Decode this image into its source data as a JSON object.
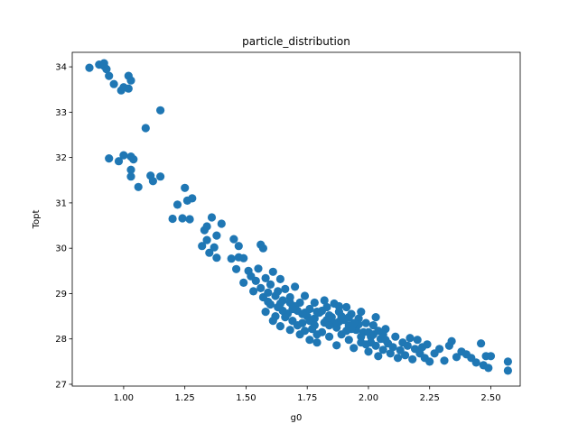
{
  "chart_data": {
    "type": "scatter",
    "title": "particle_distribution",
    "xlabel": "g0",
    "ylabel": "Topt",
    "xlim": [
      0.79,
      2.62
    ],
    "ylim": [
      26.96,
      34.32
    ],
    "xticks": [
      "1.00",
      "1.25",
      "1.50",
      "1.75",
      "2.00",
      "2.25",
      "2.50"
    ],
    "xtick_values": [
      1.0,
      1.25,
      1.5,
      1.75,
      2.0,
      2.25,
      2.5
    ],
    "yticks": [
      "27",
      "28",
      "29",
      "30",
      "31",
      "32",
      "33",
      "34"
    ],
    "ytick_values": [
      27,
      28,
      29,
      30,
      31,
      32,
      33,
      34
    ],
    "grid": false,
    "marker_color": "#1f77b4",
    "points": [
      [
        0.86,
        33.98
      ],
      [
        0.9,
        34.05
      ],
      [
        0.92,
        34.02
      ],
      [
        0.93,
        33.95
      ],
      [
        0.92,
        34.08
      ],
      [
        0.94,
        33.8
      ],
      [
        0.96,
        33.62
      ],
      [
        0.99,
        33.48
      ],
      [
        1.0,
        33.55
      ],
      [
        1.02,
        33.8
      ],
      [
        1.03,
        33.7
      ],
      [
        1.02,
        33.52
      ],
      [
        1.09,
        32.65
      ],
      [
        1.15,
        33.04
      ],
      [
        0.94,
        31.98
      ],
      [
        0.98,
        31.92
      ],
      [
        1.0,
        32.05
      ],
      [
        1.03,
        32.02
      ],
      [
        1.04,
        31.96
      ],
      [
        1.03,
        31.73
      ],
      [
        1.03,
        31.58
      ],
      [
        1.06,
        31.35
      ],
      [
        1.11,
        31.6
      ],
      [
        1.12,
        31.48
      ],
      [
        1.15,
        31.58
      ],
      [
        1.2,
        30.65
      ],
      [
        1.22,
        30.96
      ],
      [
        1.24,
        30.66
      ],
      [
        1.25,
        31.33
      ],
      [
        1.26,
        31.05
      ],
      [
        1.27,
        30.64
      ],
      [
        1.28,
        31.1
      ],
      [
        1.32,
        30.05
      ],
      [
        1.33,
        30.4
      ],
      [
        1.34,
        30.18
      ],
      [
        1.34,
        30.48
      ],
      [
        1.35,
        29.9
      ],
      [
        1.36,
        30.68
      ],
      [
        1.37,
        30.02
      ],
      [
        1.38,
        30.28
      ],
      [
        1.38,
        29.79
      ],
      [
        1.4,
        30.54
      ],
      [
        1.44,
        29.77
      ],
      [
        1.45,
        30.2
      ],
      [
        1.46,
        29.54
      ],
      [
        1.47,
        29.8
      ],
      [
        1.47,
        30.05
      ],
      [
        1.49,
        29.24
      ],
      [
        1.49,
        29.78
      ],
      [
        1.51,
        29.5
      ],
      [
        1.52,
        29.38
      ],
      [
        1.53,
        29.05
      ],
      [
        1.54,
        29.28
      ],
      [
        1.55,
        29.55
      ],
      [
        1.56,
        30.08
      ],
      [
        1.57,
        30.0
      ],
      [
        1.56,
        29.12
      ],
      [
        1.57,
        28.92
      ],
      [
        1.58,
        29.34
      ],
      [
        1.59,
        28.82
      ],
      [
        1.6,
        29.2
      ],
      [
        1.6,
        28.76
      ],
      [
        1.61,
        29.48
      ],
      [
        1.62,
        28.95
      ],
      [
        1.62,
        28.5
      ],
      [
        1.63,
        28.7
      ],
      [
        1.64,
        29.32
      ],
      [
        1.64,
        28.28
      ],
      [
        1.65,
        28.85
      ],
      [
        1.66,
        29.1
      ],
      [
        1.67,
        28.56
      ],
      [
        1.68,
        28.2
      ],
      [
        1.68,
        28.92
      ],
      [
        1.69,
        28.4
      ],
      [
        1.7,
        29.15
      ],
      [
        1.71,
        28.62
      ],
      [
        1.72,
        28.1
      ],
      [
        1.72,
        28.8
      ],
      [
        1.73,
        28.35
      ],
      [
        1.74,
        28.95
      ],
      [
        1.75,
        28.5
      ],
      [
        1.76,
        27.98
      ],
      [
        1.76,
        28.66
      ],
      [
        1.77,
        28.22
      ],
      [
        1.78,
        28.8
      ],
      [
        1.78,
        28.45
      ],
      [
        1.79,
        27.92
      ],
      [
        1.8,
        28.58
      ],
      [
        1.81,
        28.15
      ],
      [
        1.82,
        28.85
      ],
      [
        1.82,
        28.36
      ],
      [
        1.83,
        28.7
      ],
      [
        1.84,
        28.05
      ],
      [
        1.85,
        28.48
      ],
      [
        1.86,
        28.78
      ],
      [
        1.87,
        28.25
      ],
      [
        1.87,
        27.86
      ],
      [
        1.88,
        28.6
      ],
      [
        1.89,
        28.1
      ],
      [
        1.9,
        28.42
      ],
      [
        1.91,
        28.7
      ],
      [
        1.92,
        27.98
      ],
      [
        1.92,
        28.3
      ],
      [
        1.93,
        28.55
      ],
      [
        1.94,
        27.8
      ],
      [
        1.95,
        28.2
      ],
      [
        1.96,
        28.45
      ],
      [
        1.97,
        27.92
      ],
      [
        1.98,
        28.15
      ],
      [
        1.99,
        28.35
      ],
      [
        2.0,
        27.72
      ],
      [
        2.01,
        28.05
      ],
      [
        2.02,
        28.3
      ],
      [
        2.03,
        28.48
      ],
      [
        2.03,
        27.85
      ],
      [
        2.04,
        27.62
      ],
      [
        2.05,
        28.0
      ],
      [
        2.06,
        27.76
      ],
      [
        2.07,
        28.22
      ],
      [
        2.08,
        27.9
      ],
      [
        2.09,
        27.68
      ],
      [
        2.1,
        27.82
      ],
      [
        2.11,
        28.05
      ],
      [
        2.12,
        27.58
      ],
      [
        2.13,
        27.75
      ],
      [
        2.14,
        27.92
      ],
      [
        2.15,
        27.64
      ],
      [
        2.16,
        27.85
      ],
      [
        2.17,
        28.02
      ],
      [
        2.18,
        27.55
      ],
      [
        2.19,
        27.78
      ],
      [
        2.2,
        27.98
      ],
      [
        2.21,
        27.68
      ],
      [
        2.22,
        27.82
      ],
      [
        2.23,
        27.58
      ],
      [
        2.24,
        27.88
      ],
      [
        2.25,
        27.5
      ],
      [
        2.27,
        27.68
      ],
      [
        2.29,
        27.78
      ],
      [
        2.31,
        27.52
      ],
      [
        2.33,
        27.85
      ],
      [
        2.34,
        27.95
      ],
      [
        2.36,
        27.6
      ],
      [
        2.38,
        27.72
      ],
      [
        2.4,
        27.66
      ],
      [
        2.42,
        27.58
      ],
      [
        2.44,
        27.48
      ],
      [
        2.46,
        27.9
      ],
      [
        2.47,
        27.42
      ],
      [
        2.48,
        27.62
      ],
      [
        2.49,
        27.36
      ],
      [
        2.5,
        27.62
      ],
      [
        2.57,
        27.5
      ],
      [
        2.57,
        27.3
      ],
      [
        1.58,
        28.6
      ],
      [
        1.61,
        28.4
      ],
      [
        1.65,
        28.62
      ],
      [
        1.7,
        28.72
      ],
      [
        1.74,
        28.58
      ],
      [
        1.79,
        28.6
      ],
      [
        1.84,
        28.52
      ],
      [
        1.88,
        28.38
      ],
      [
        1.93,
        28.22
      ],
      [
        1.97,
        28.05
      ],
      [
        2.01,
        27.92
      ],
      [
        2.06,
        28.1
      ],
      [
        1.66,
        28.48
      ],
      [
        1.71,
        28.3
      ],
      [
        1.76,
        28.4
      ],
      [
        1.81,
        28.62
      ],
      [
        1.86,
        28.35
      ],
      [
        1.91,
        28.18
      ],
      [
        1.96,
        28.32
      ],
      [
        2.0,
        28.15
      ],
      [
        1.63,
        29.05
      ],
      [
        1.68,
        28.8
      ],
      [
        1.73,
        28.55
      ],
      [
        1.78,
        28.3
      ],
      [
        1.83,
        28.42
      ],
      [
        1.88,
        28.72
      ],
      [
        1.92,
        28.48
      ],
      [
        1.97,
        28.6
      ],
      [
        2.02,
        28.1
      ],
      [
        2.07,
        27.98
      ],
      [
        1.59,
        29.02
      ],
      [
        1.64,
        28.78
      ],
      [
        1.69,
        28.66
      ],
      [
        1.74,
        28.18
      ],
      [
        1.79,
        28.1
      ],
      [
        1.84,
        28.3
      ],
      [
        1.89,
        28.5
      ],
      [
        1.94,
        28.35
      ],
      [
        1.99,
        27.88
      ],
      [
        2.04,
        28.18
      ]
    ]
  }
}
